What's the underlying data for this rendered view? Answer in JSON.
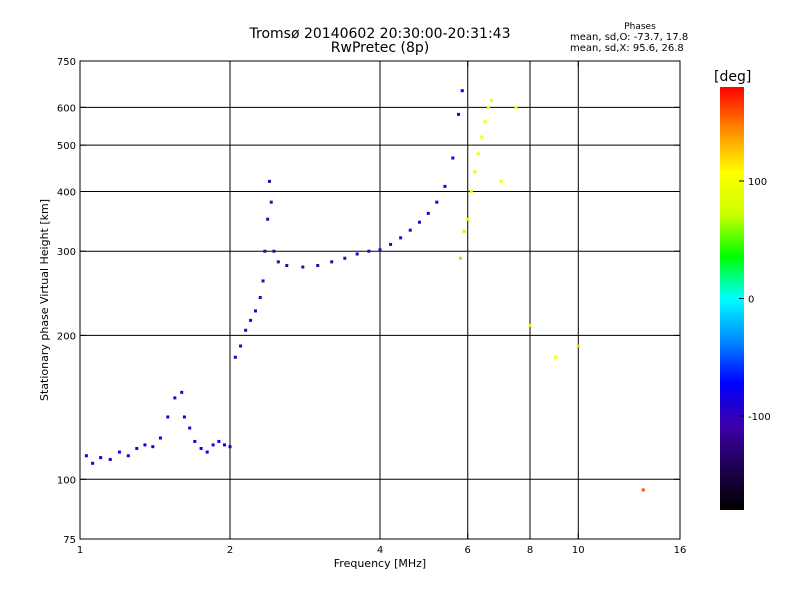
{
  "header": {
    "title_line1": "Tromsø 20140602 20:30:00-20:31:43",
    "title_line2": "RwPretec (8p)"
  },
  "phases": {
    "heading": "Phases",
    "o_line": "mean, sd,O: -73.7, 17.8",
    "x_line": "mean, sd,X:  95.6, 26.8"
  },
  "colorbar": {
    "unit": "[deg]",
    "range": [
      -180,
      180
    ],
    "ticks": [
      {
        "value": 100,
        "label": "100"
      },
      {
        "value": 0,
        "label": "0"
      },
      {
        "value": -100,
        "label": "-100"
      }
    ],
    "colors_hex": [
      "#000000",
      "#1e0050",
      "#3c00aa",
      "#0000ff",
      "#0088ff",
      "#00ffff",
      "#00ff00",
      "#ccff00",
      "#ffff00",
      "#ff8800",
      "#ff0000"
    ]
  },
  "chart_data": {
    "type": "scatter",
    "title": "Tromsø 20140602 20:30:00-20:31:43",
    "subtitle": "RwPretec (8p)",
    "xlabel": "Frequency [MHz]",
    "ylabel": "Stationary phase Virtual Height [km]",
    "xscale": "log",
    "yscale": "log",
    "xlim": [
      1,
      16
    ],
    "ylim": [
      75,
      750
    ],
    "grid": true,
    "xticks": [
      1,
      2,
      4,
      6,
      8,
      10,
      16
    ],
    "xtick_labels": [
      "1",
      "2",
      "4",
      "6",
      "8",
      "10",
      "16"
    ],
    "xgrid": [
      2,
      4,
      6,
      8,
      10
    ],
    "yticks": [
      75,
      100,
      200,
      300,
      400,
      500,
      600,
      750
    ],
    "ytick_labels": [
      "75",
      "100",
      "200",
      "300",
      "400",
      "500",
      "600",
      "750"
    ],
    "ygrid": [
      100,
      200,
      300,
      400,
      500,
      600
    ],
    "color_encoding": "phase [deg]",
    "series": [
      {
        "points": [
          [
            1.03,
            112,
            -80
          ],
          [
            1.06,
            108,
            -85
          ],
          [
            1.1,
            111,
            -80
          ],
          [
            1.15,
            110,
            -78
          ],
          [
            1.2,
            114,
            -82
          ],
          [
            1.25,
            112,
            -80
          ],
          [
            1.3,
            116,
            -85
          ],
          [
            1.35,
            118,
            -80
          ],
          [
            1.4,
            117,
            -83
          ],
          [
            1.45,
            122,
            -80
          ],
          [
            1.5,
            135,
            -90
          ],
          [
            1.55,
            148,
            -95
          ],
          [
            1.6,
            152,
            -92
          ],
          [
            1.62,
            135,
            -88
          ],
          [
            1.66,
            128,
            -85
          ],
          [
            1.7,
            120,
            -80
          ],
          [
            1.75,
            116,
            -85
          ],
          [
            1.8,
            114,
            -82
          ],
          [
            1.85,
            118,
            -80
          ],
          [
            1.9,
            120,
            -84
          ],
          [
            1.95,
            118,
            -80
          ],
          [
            2.0,
            117,
            -85
          ],
          [
            2.05,
            180,
            -90
          ],
          [
            2.1,
            190,
            -95
          ],
          [
            2.15,
            205,
            -92
          ],
          [
            2.2,
            215,
            -90
          ],
          [
            2.25,
            225,
            -95
          ],
          [
            2.3,
            240,
            -100
          ],
          [
            2.33,
            260,
            -105
          ],
          [
            2.35,
            300,
            -110
          ],
          [
            2.38,
            350,
            -110
          ],
          [
            2.4,
            420,
            -105
          ],
          [
            2.42,
            380,
            -108
          ],
          [
            2.45,
            300,
            -112
          ],
          [
            2.5,
            285,
            -110
          ],
          [
            2.6,
            280,
            -112
          ],
          [
            2.8,
            278,
            -115
          ],
          [
            3.0,
            280,
            -115
          ],
          [
            3.2,
            285,
            -112
          ],
          [
            3.4,
            290,
            -110
          ],
          [
            3.6,
            296,
            -110
          ],
          [
            3.8,
            300,
            -108
          ],
          [
            4.0,
            302,
            -105
          ],
          [
            4.2,
            310,
            -105
          ],
          [
            4.4,
            320,
            -102
          ],
          [
            4.6,
            332,
            -100
          ],
          [
            4.8,
            345,
            -98
          ],
          [
            5.0,
            360,
            -95
          ],
          [
            5.2,
            380,
            -92
          ],
          [
            5.4,
            410,
            -90
          ],
          [
            5.6,
            470,
            -85
          ],
          [
            5.75,
            580,
            -80
          ],
          [
            5.85,
            650,
            -78
          ]
        ],
        "name": ""
      },
      {
        "points": [
          [
            5.8,
            290,
            60
          ],
          [
            5.9,
            330,
            70
          ],
          [
            6.0,
            350,
            80
          ],
          [
            6.1,
            400,
            90
          ],
          [
            6.2,
            440,
            95
          ],
          [
            6.3,
            480,
            100
          ],
          [
            6.4,
            520,
            105
          ],
          [
            6.5,
            560,
            110
          ],
          [
            6.6,
            600,
            100
          ],
          [
            6.7,
            620,
            95
          ],
          [
            7.0,
            420,
            100
          ],
          [
            7.5,
            600,
            110
          ],
          [
            8.0,
            210,
            110
          ],
          [
            9.0,
            180,
            100
          ],
          [
            10.0,
            190,
            120
          ],
          [
            13.5,
            95,
            160
          ]
        ],
        "name": ""
      }
    ]
  }
}
